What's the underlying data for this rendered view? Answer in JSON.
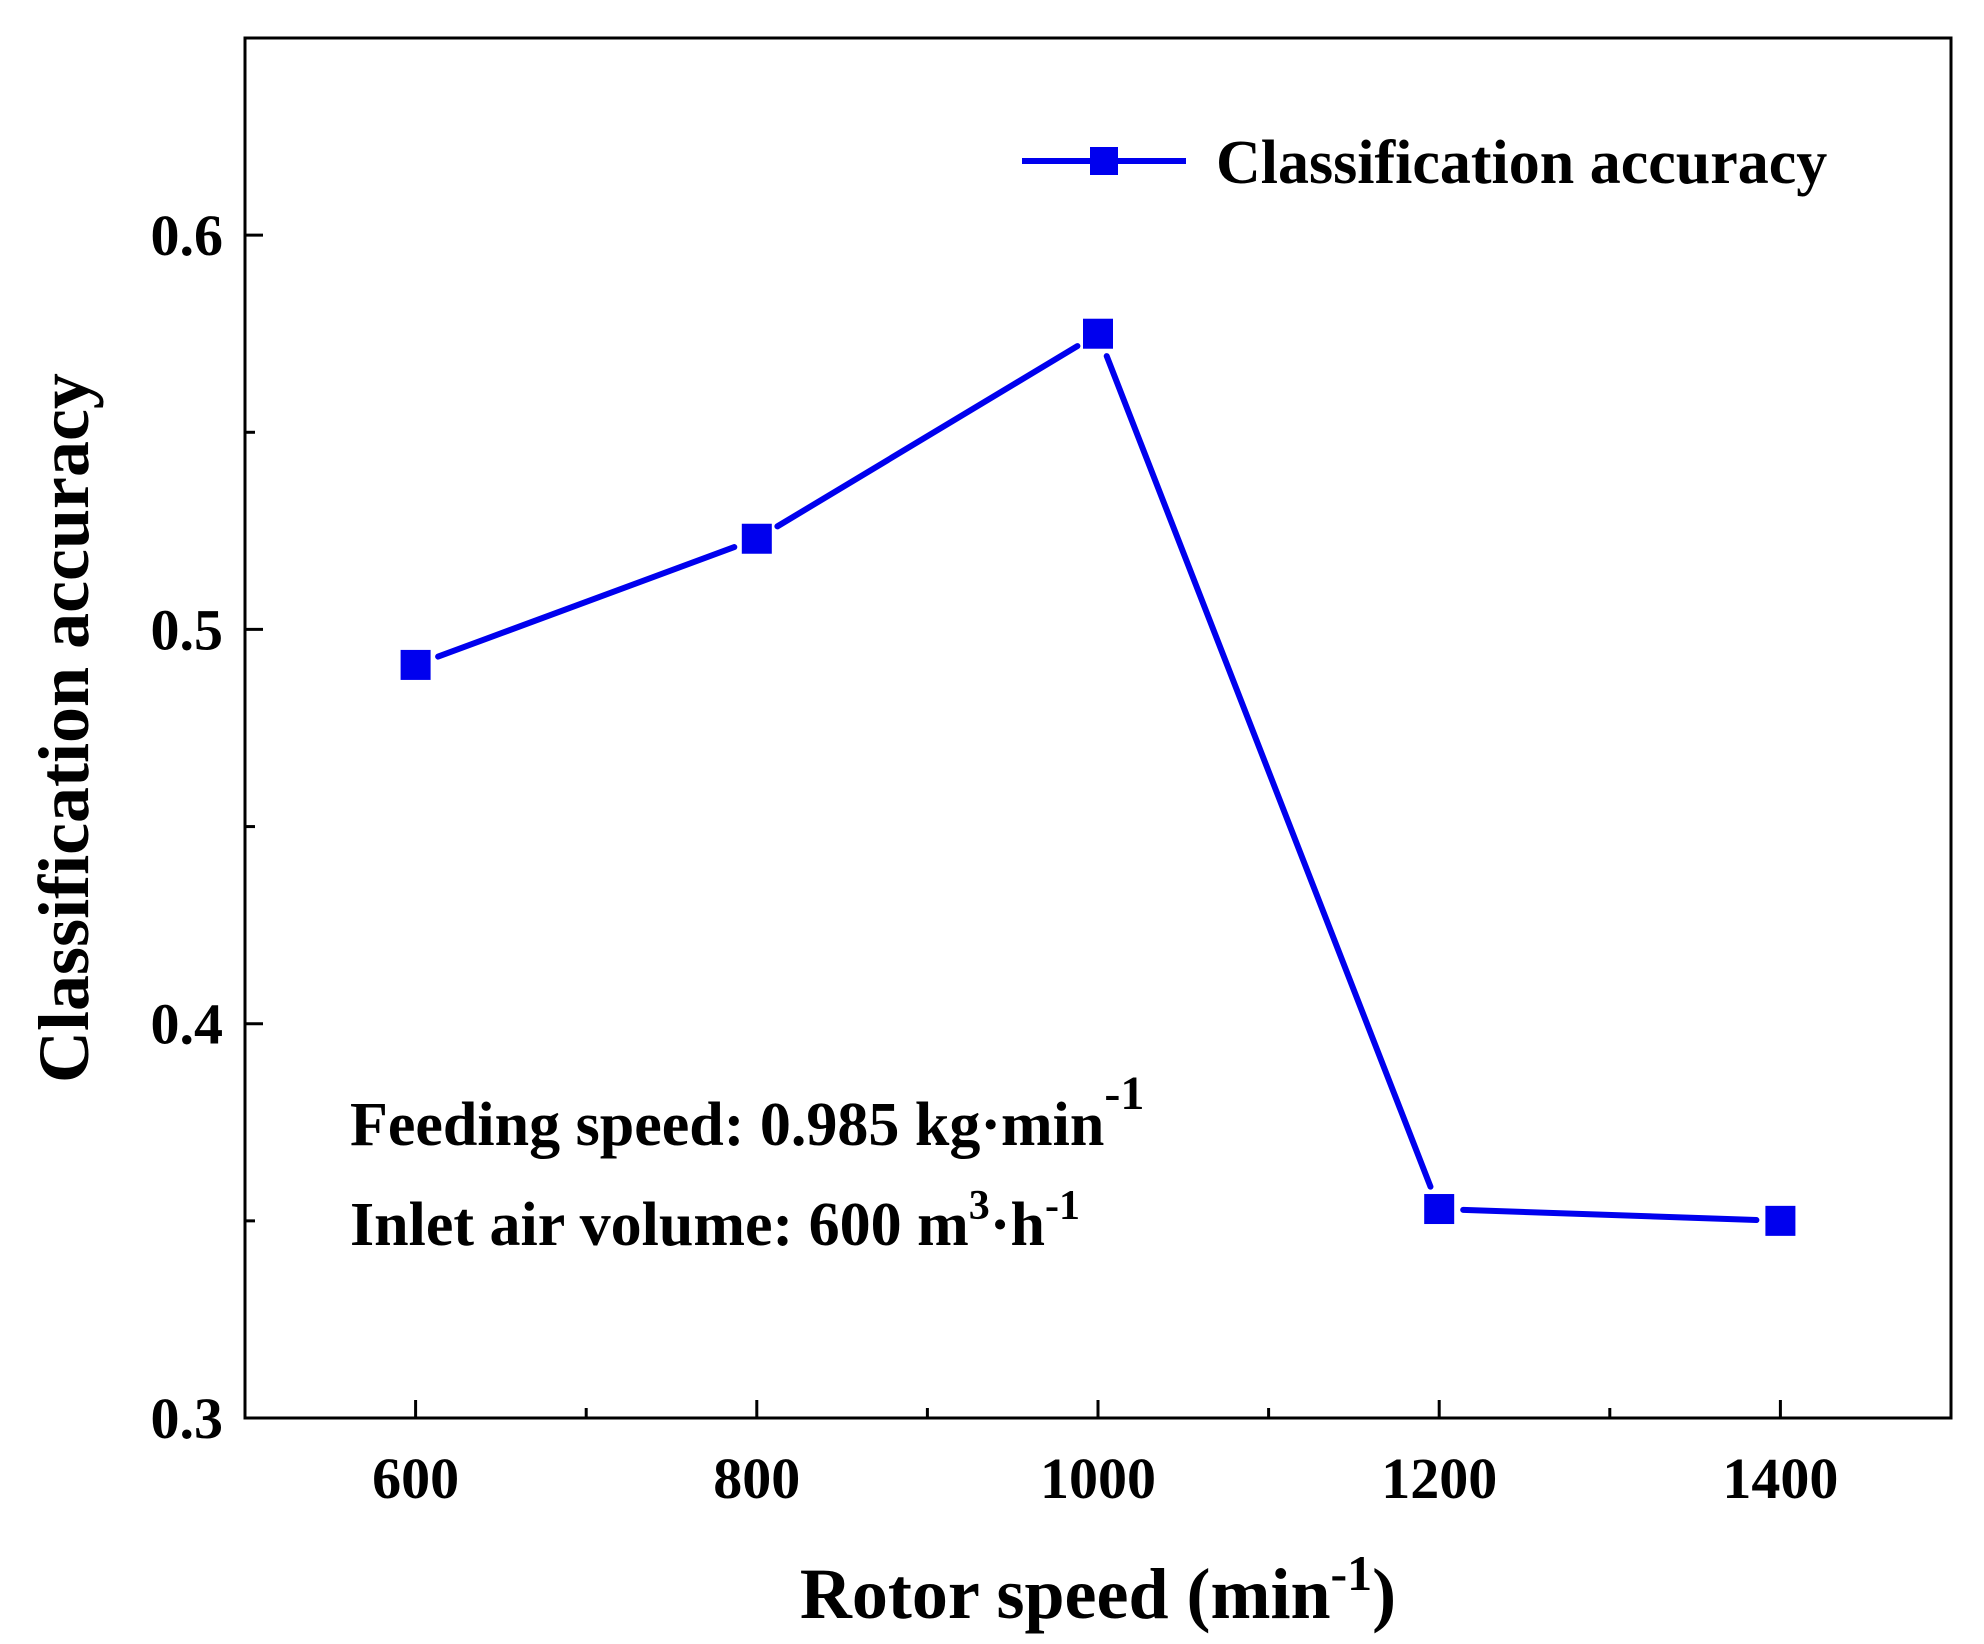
{
  "chart_data": {
    "type": "line",
    "x": [
      600,
      800,
      1000,
      1200,
      1400
    ],
    "series": [
      {
        "name": "Classification accuracy",
        "color": "#0000ee",
        "marker": "square",
        "values": [
          0.491,
          0.523,
          0.575,
          0.353,
          0.35
        ]
      }
    ],
    "xlabel": {
      "main": "Rotor speed (min",
      "sup": "-1",
      "close": ")"
    },
    "ylabel": "Classification accuracy",
    "xlim": [
      500,
      1500
    ],
    "ylim": [
      0.3,
      0.65
    ],
    "xticks": [
      600,
      800,
      1000,
      1200,
      1400
    ],
    "xtick_labels": [
      "600",
      "800",
      "1000",
      "1200",
      "1400"
    ],
    "x_minor_ticks": [
      700,
      900,
      1100,
      1300
    ],
    "yticks": [
      0.3,
      0.4,
      0.5,
      0.6
    ],
    "ytick_labels": [
      "0.3",
      "0.4",
      "0.5",
      "0.6"
    ],
    "y_minor_ticks": [
      0.35,
      0.45,
      0.55
    ],
    "legend": {
      "label": "Classification accuracy",
      "placement": "top-right"
    },
    "annotations": [
      {
        "main": "Feeding speed: 0.985 kg·min",
        "sup": "-1"
      },
      {
        "main": "Inlet air volume: 600 m",
        "sup": "3",
        "mid": "·h",
        "sup2": "-1"
      }
    ]
  }
}
